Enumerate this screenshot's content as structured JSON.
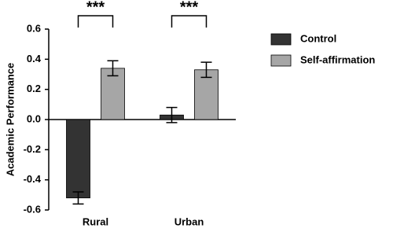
{
  "chart_data": {
    "type": "bar",
    "y_label": "Academic Performance",
    "categories": [
      "Rural",
      "Urban"
    ],
    "series": [
      {
        "name": "Control",
        "color": "#333333",
        "values": [
          -0.52,
          0.03
        ],
        "errors": [
          0.04,
          0.05
        ]
      },
      {
        "name": "Self-affirmation",
        "color": "#a6a6a6",
        "values": [
          0.34,
          0.33
        ],
        "errors": [
          0.05,
          0.05
        ]
      }
    ],
    "significance": [
      "***",
      "***"
    ],
    "ylim": [
      -0.6,
      0.6
    ],
    "yticks": [
      -0.6,
      -0.4,
      -0.2,
      {
        "value": 0,
        "label": "0.0"
      },
      0.2,
      0.4,
      0.6
    ],
    "legend": "right"
  }
}
